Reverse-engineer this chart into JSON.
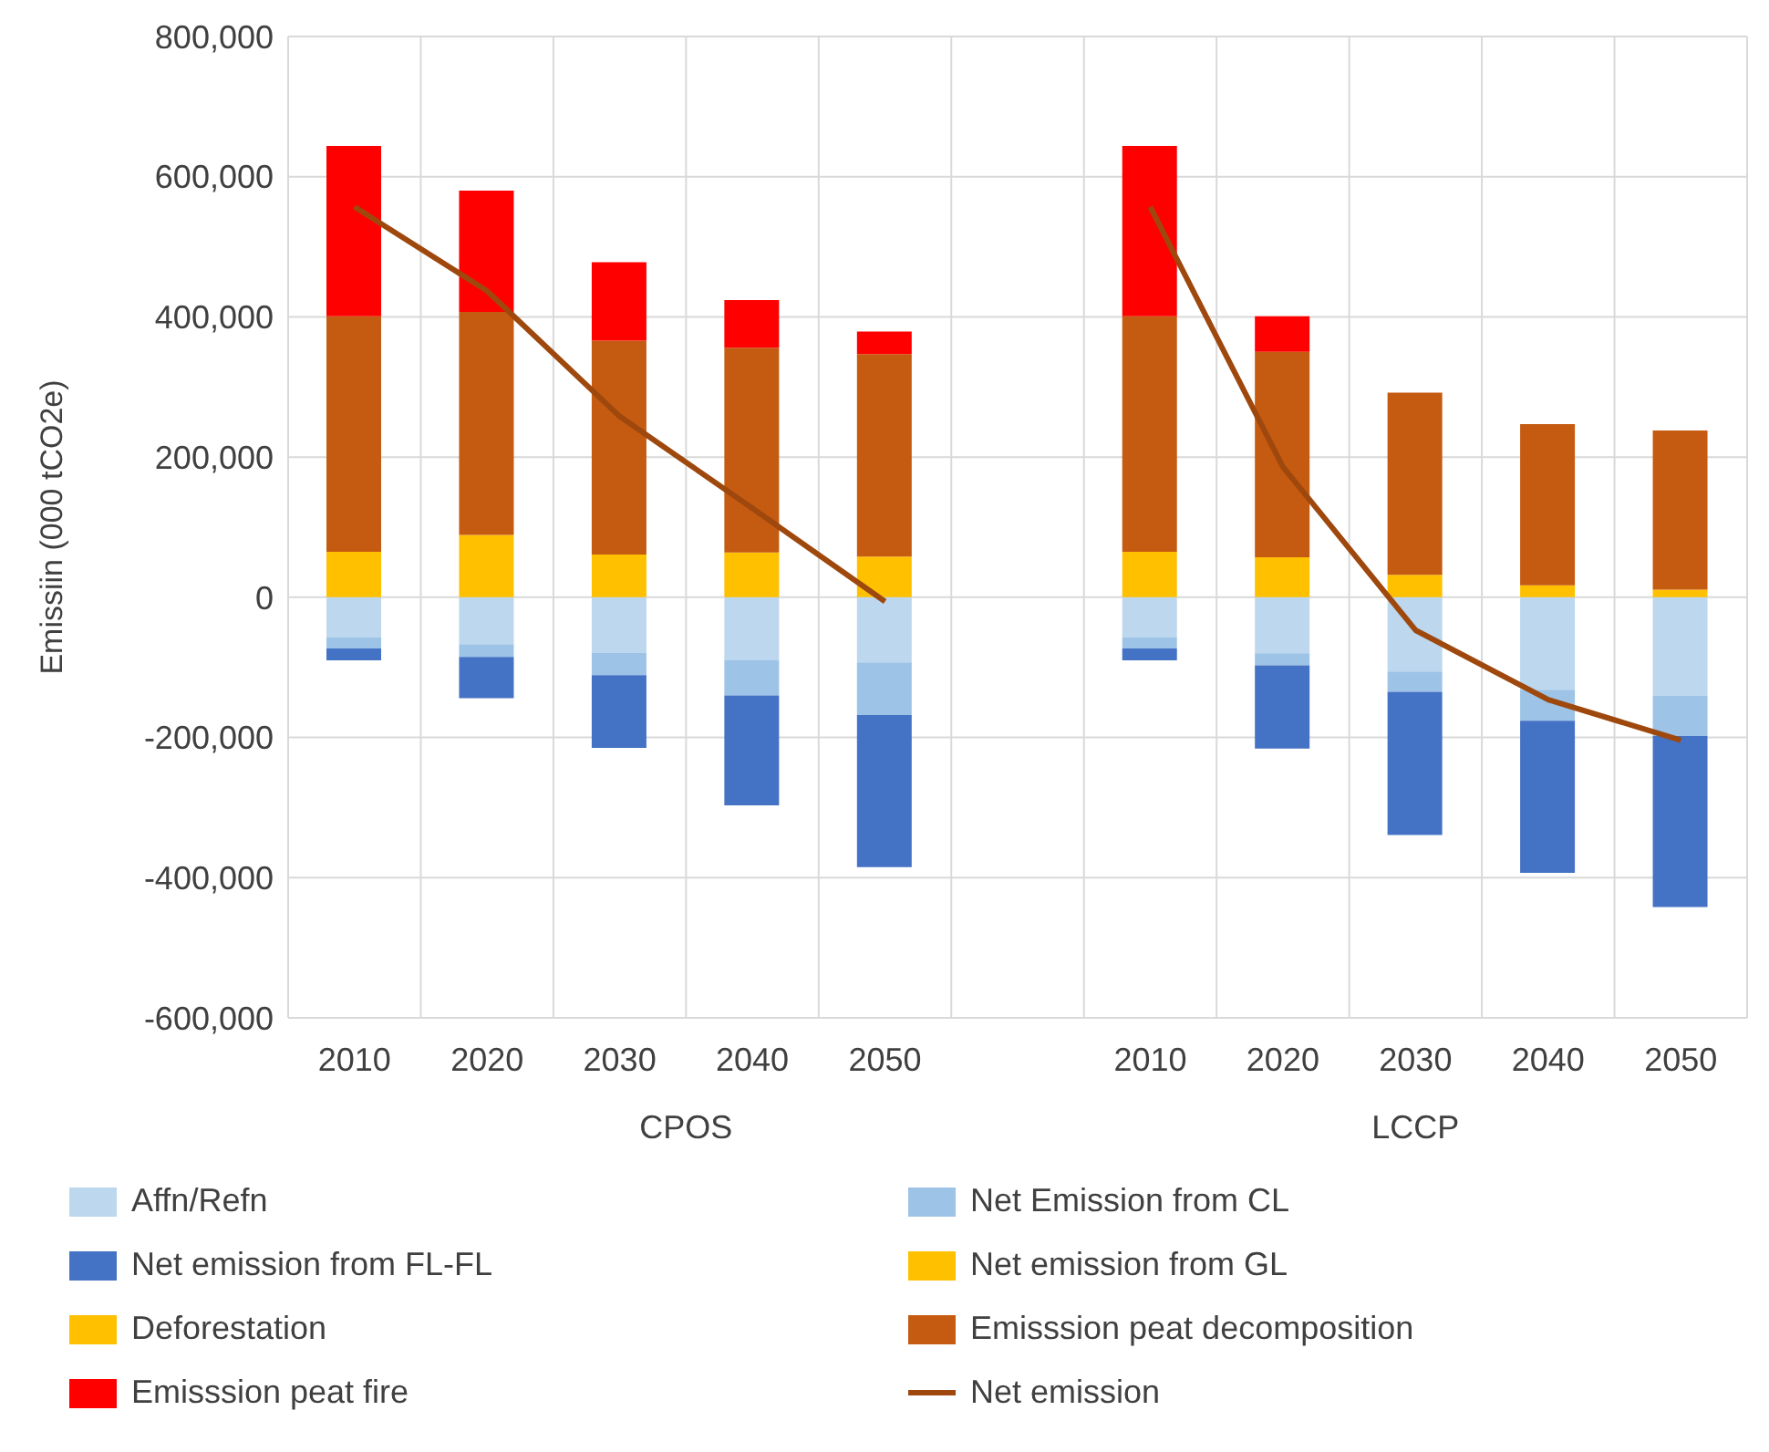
{
  "chart_data": {
    "type": "bar",
    "stacked": true,
    "ylabel": "Emissiin (000 tCO2e)",
    "categories": [
      "2010",
      "2020",
      "2030",
      "2040",
      "2050",
      null,
      "2010",
      "2020",
      "2030",
      "2040",
      "2050"
    ],
    "annotations": [
      "CPOS",
      "LCCP"
    ],
    "ylim": [
      -600000,
      800000
    ],
    "yticks": [
      {
        "value": -600000,
        "label": "-600,000"
      },
      {
        "value": -400000,
        "label": "-400,000"
      },
      {
        "value": -200000,
        "label": "-200,000"
      },
      0,
      {
        "value": 200000,
        "label": "200,000"
      },
      {
        "value": 400000,
        "label": "400,000"
      },
      {
        "value": 600000,
        "label": "600,000"
      },
      {
        "value": 800000,
        "label": "800,000"
      }
    ],
    "grid": true,
    "legend": "bottom",
    "series": [
      {
        "name": "Affn/Refn",
        "color": "#bdd7ee",
        "values": [
          -57000,
          -67000,
          -79000,
          -90000,
          -93000,
          null,
          -57000,
          -80000,
          -106000,
          -132000,
          -140000
        ]
      },
      {
        "name": "Net Emission from CL",
        "color": "#9dc3e6",
        "values": [
          -16000,
          -18000,
          -32000,
          -50000,
          -75000,
          null,
          -16000,
          -17000,
          -29000,
          -44000,
          -58000
        ]
      },
      {
        "name": "Net emission from FL-FL",
        "color": "#4472c4",
        "values": [
          -17000,
          -59000,
          -104000,
          -157000,
          -217000,
          null,
          -17000,
          -119000,
          -204000,
          -217000,
          -244000
        ]
      },
      {
        "name": "Net emission from GL",
        "color": "#ffc000",
        "values": [
          null,
          null,
          null,
          null,
          null,
          null,
          null,
          null,
          null,
          null,
          null
        ]
      },
      {
        "name": "Deforestation",
        "color": "#ffc000",
        "values": [
          65000,
          89000,
          61000,
          64000,
          58000,
          null,
          65000,
          57000,
          32000,
          17000,
          11000
        ]
      },
      {
        "name": "Emisssion peat decomposition",
        "color": "#c55a11",
        "values": [
          336000,
          318000,
          305000,
          292000,
          289000,
          null,
          336000,
          293000,
          260000,
          230000,
          227000
        ]
      },
      {
        "name": "Emisssion peat fire",
        "color": "#ff0000",
        "values": [
          243000,
          173000,
          112000,
          68000,
          32000,
          null,
          243000,
          51000,
          null,
          null,
          null
        ]
      },
      {
        "name": "Net emission",
        "type": "line",
        "color": "#9e480e",
        "values": [
          557000,
          437000,
          258000,
          127000,
          -6000,
          null,
          557000,
          186000,
          -47000,
          -146000,
          -204000
        ]
      }
    ]
  }
}
